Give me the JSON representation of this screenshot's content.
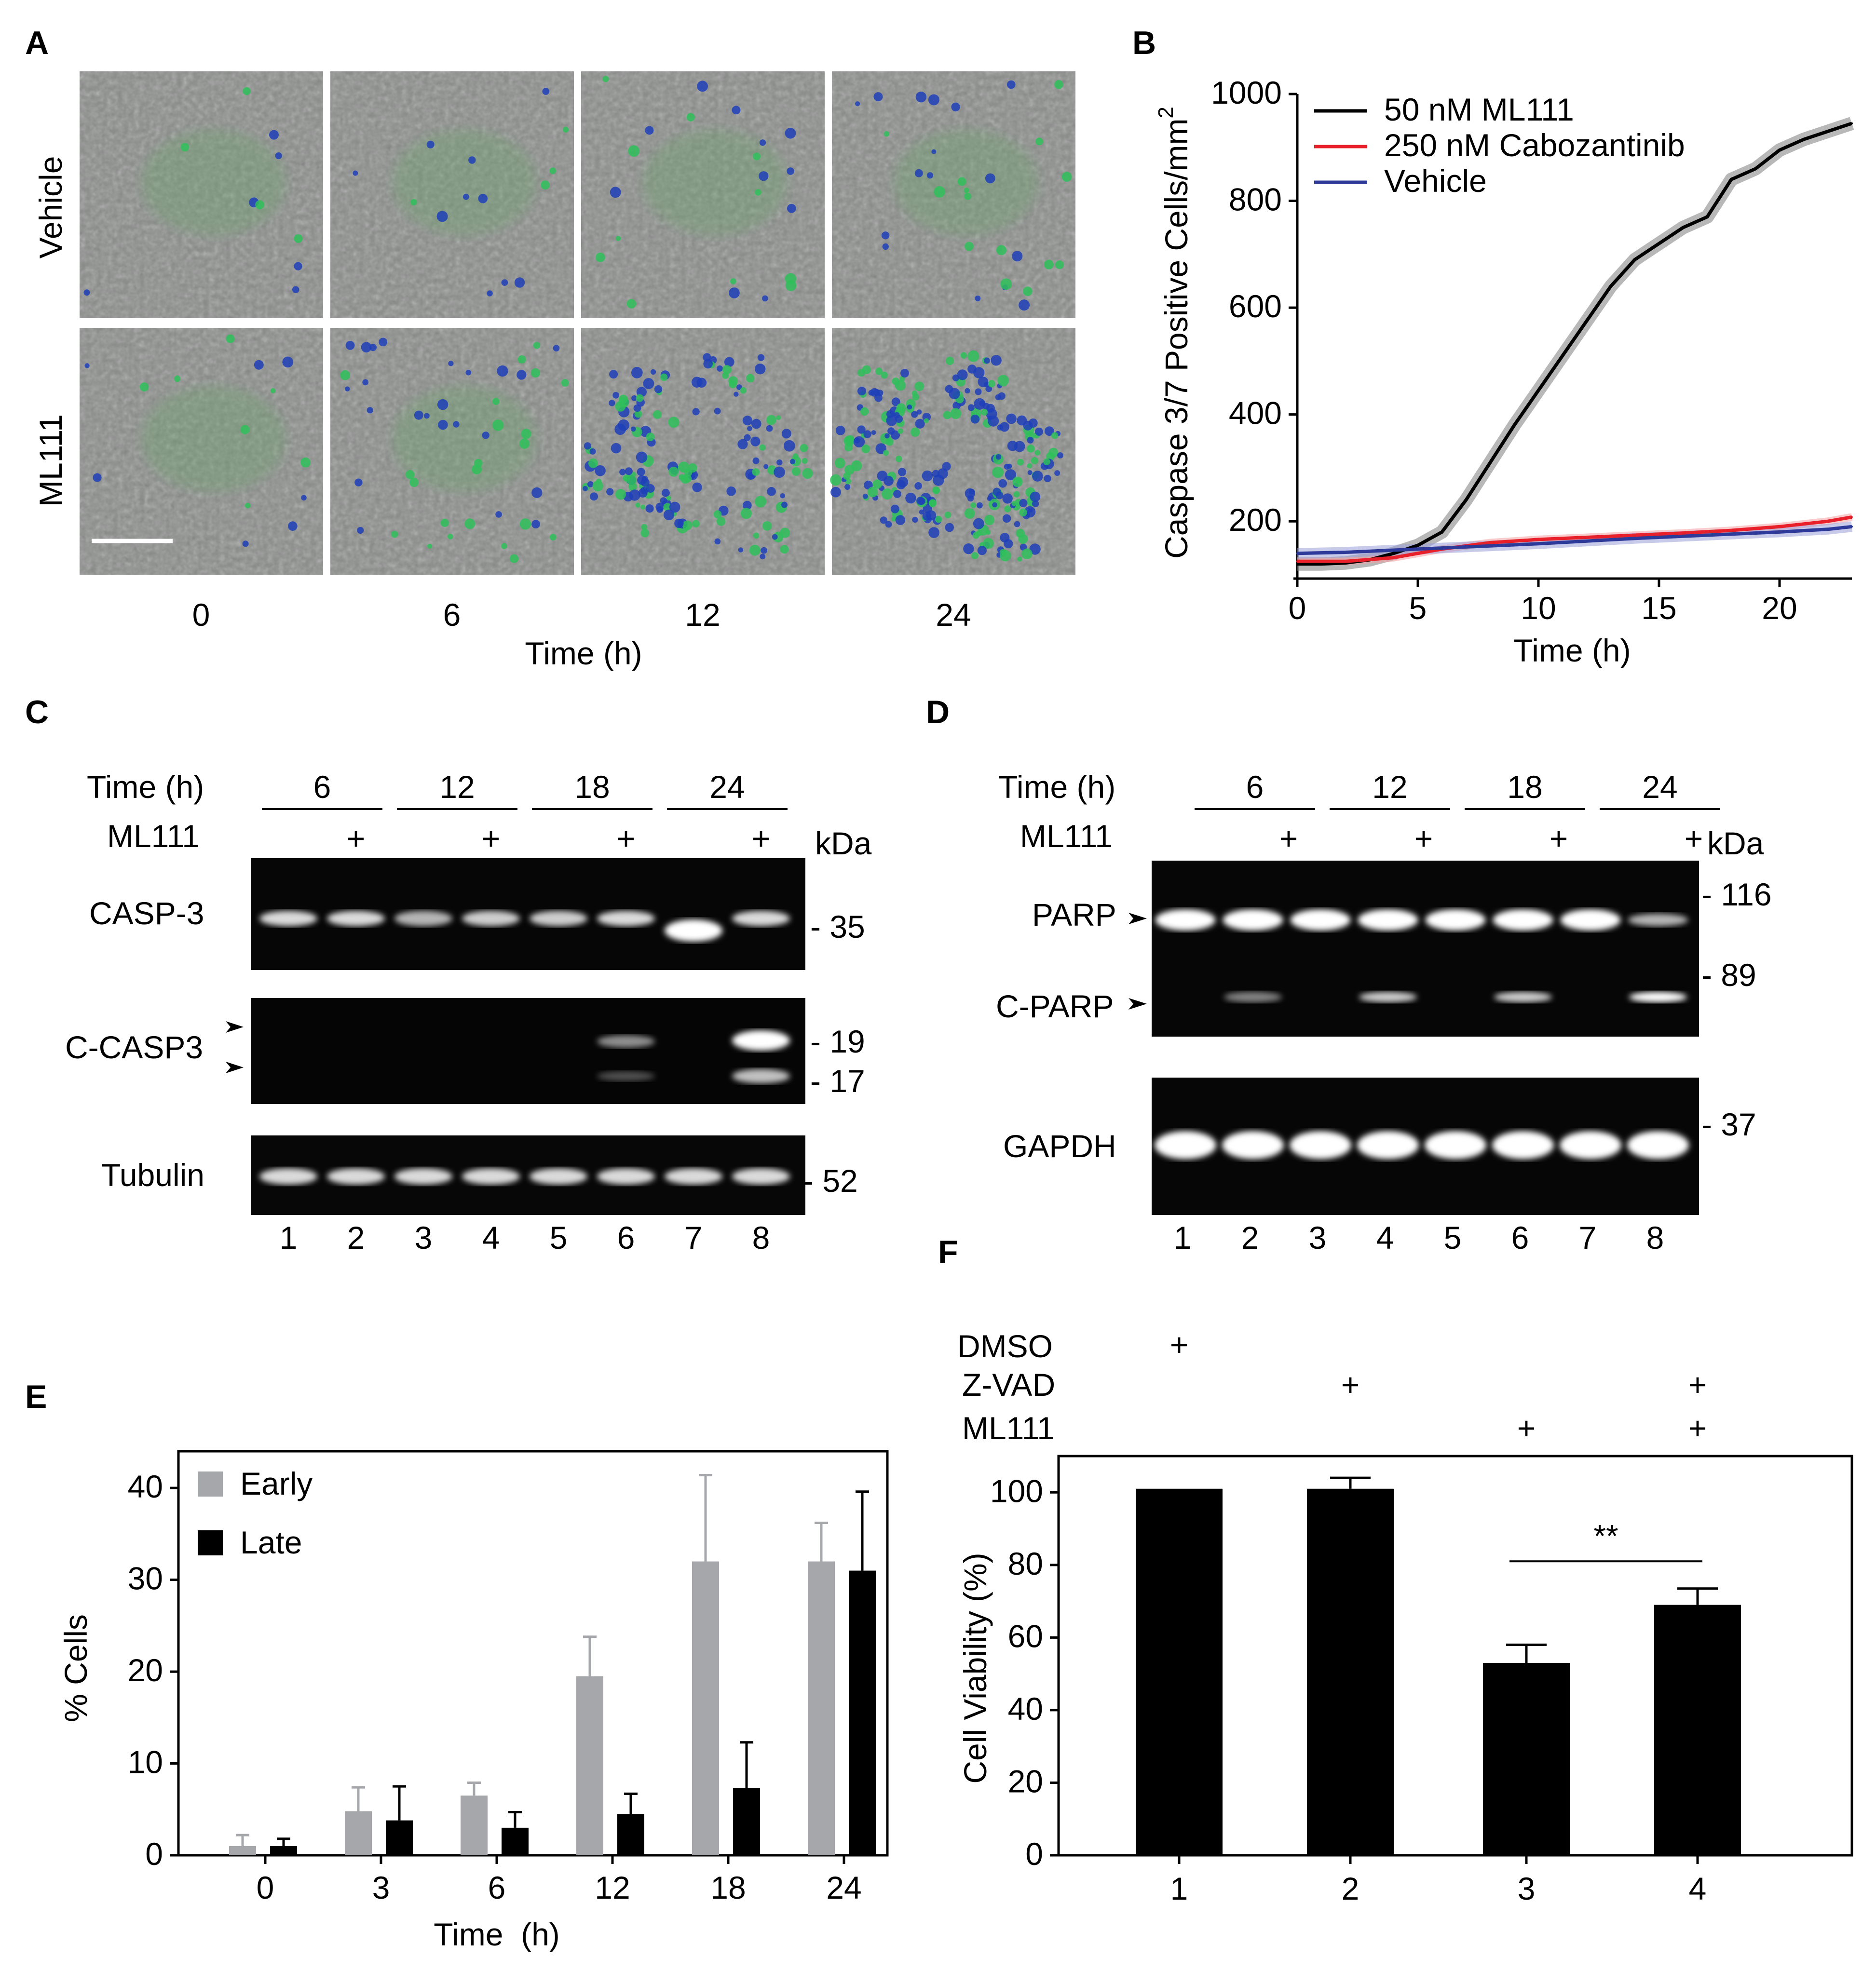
{
  "panels": {
    "A": "A",
    "B": "B",
    "C": "C",
    "D": "D",
    "E": "E",
    "F": "F"
  },
  "panel_a": {
    "row_labels": [
      "Vehicle",
      "ML111"
    ],
    "timepoints": [
      "0",
      "6",
      "12",
      "24"
    ],
    "xlabel": "Time (h)"
  },
  "panel_c": {
    "time_label": "Time (h)",
    "times": [
      "6",
      "12",
      "18",
      "24"
    ],
    "treat_label": "ML111",
    "plus": "+",
    "kda": "kDa",
    "blots": [
      {
        "label": "CASP-3",
        "markers": [
          "35"
        ]
      },
      {
        "label": "C-CASP3",
        "markers": [
          "19",
          "17"
        ]
      },
      {
        "label": "Tubulin",
        "markers": [
          "52"
        ]
      }
    ],
    "lanes": [
      "1",
      "2",
      "3",
      "4",
      "5",
      "6",
      "7",
      "8"
    ]
  },
  "panel_d": {
    "time_label": "Time (h)",
    "times": [
      "6",
      "12",
      "18",
      "24"
    ],
    "treat_label": "ML111",
    "plus": "+",
    "kda": "kDa",
    "blots": [
      {
        "labels": [
          "PARP",
          "C-PARP"
        ],
        "markers": [
          "116",
          "89"
        ]
      },
      {
        "labels": [
          "GAPDH"
        ],
        "markers": [
          "37"
        ]
      }
    ],
    "lanes": [
      "1",
      "2",
      "3",
      "4",
      "5",
      "6",
      "7",
      "8"
    ]
  },
  "panel_f_conditions": {
    "rows": [
      "DMSO",
      "Z-VAD",
      "ML111"
    ],
    "plus": "+"
  },
  "chart_data": [
    {
      "id": "B",
      "type": "line",
      "title": "",
      "xlabel": "Time (h)",
      "ylabel": "Caspase 3/7 Positive Cells/mm",
      "ylabel_sup": "2",
      "xlim": [
        0,
        23
      ],
      "ylim": [
        100,
        1000
      ],
      "xticks": [
        0,
        5,
        10,
        15,
        20
      ],
      "yticks": [
        200,
        400,
        600,
        800,
        1000
      ],
      "legend": "top-left",
      "series": [
        {
          "name": "50 nM ML111",
          "color": "#000000",
          "x": [
            0,
            1,
            2,
            3,
            4,
            5,
            6,
            7,
            8,
            9,
            10,
            11,
            12,
            13,
            14,
            15,
            16,
            17,
            18,
            19,
            20,
            21,
            22,
            23
          ],
          "y": [
            120,
            120,
            122,
            128,
            140,
            155,
            180,
            240,
            310,
            380,
            445,
            510,
            575,
            640,
            690,
            720,
            750,
            770,
            840,
            860,
            895,
            915,
            930,
            945
          ]
        },
        {
          "name": "250 nM Cabozantinib",
          "color": "#e8202a",
          "x": [
            0,
            2,
            4,
            6,
            8,
            10,
            12,
            14,
            16,
            18,
            20,
            22,
            23
          ],
          "y": [
            125,
            125,
            132,
            148,
            160,
            166,
            170,
            174,
            178,
            183,
            190,
            200,
            208
          ]
        },
        {
          "name": "Vehicle",
          "color": "#2e3a9a",
          "x": [
            0,
            2,
            4,
            6,
            8,
            10,
            12,
            14,
            16,
            18,
            20,
            22,
            23
          ],
          "y": [
            140,
            142,
            146,
            150,
            154,
            158,
            163,
            168,
            172,
            176,
            180,
            185,
            190
          ]
        }
      ]
    },
    {
      "id": "E",
      "type": "bar",
      "xlabel": "Time  (h)",
      "ylabel": "% Cells",
      "categories": [
        "0",
        "3",
        "6",
        "12",
        "18",
        "24"
      ],
      "ylim": [
        0,
        44
      ],
      "yticks": [
        0,
        10,
        20,
        30,
        40
      ],
      "legend": "top-left",
      "series": [
        {
          "name": "Early",
          "color": "#a6a7aa",
          "values": [
            1.0,
            4.8,
            6.5,
            19.5,
            32.0,
            32.0
          ],
          "errors": [
            1.2,
            2.6,
            1.4,
            4.3,
            9.4,
            4.2
          ]
        },
        {
          "name": "Late",
          "color": "#000000",
          "values": [
            1.0,
            3.8,
            3.0,
            4.5,
            7.3,
            31.0
          ],
          "errors": [
            0.8,
            3.7,
            1.7,
            2.2,
            5.0,
            8.6
          ]
        }
      ]
    },
    {
      "id": "F",
      "type": "bar",
      "xlabel": "",
      "ylabel": "Cell Viability (%)",
      "categories": [
        "1",
        "2",
        "3",
        "4"
      ],
      "values": [
        101,
        101,
        53,
        69
      ],
      "errors": [
        0,
        3,
        5,
        4.5
      ],
      "ylim": [
        0,
        110
      ],
      "yticks": [
        0,
        20,
        40,
        60,
        80,
        100
      ],
      "significance": {
        "between": [
          "3",
          "4"
        ],
        "label": "**"
      }
    }
  ]
}
